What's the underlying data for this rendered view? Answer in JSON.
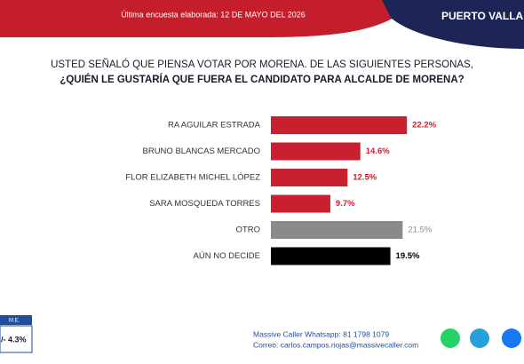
{
  "header": {
    "survey_date": "Última encuesta elaborada: 12 DE MAYO DEL 2026",
    "city": "PUERTO VALLA"
  },
  "chart_data": {
    "type": "hbar",
    "title": [
      "USTED SEÑALÓ QUE PIENSA VOTAR POR MORENA. DE LAS SIGUIENTES PERSONAS,",
      "¿QUIÉN LE GUSTARÍA QUE FUERA EL CANDIDATO PARA ALCALDE DE MORENA?"
    ],
    "categories": [
      "RA AGUILAR ESTRADA",
      "BRUNO BLANCAS MERCADO",
      "FLOR ELIZABETH MICHEL LÓPEZ",
      "SARA MOSQUEDA TORRES",
      "OTRO",
      "AÚN NO DECIDE"
    ],
    "values": [
      22.2,
      14.6,
      12.5,
      9.7,
      21.5,
      19.5
    ],
    "value_labels": [
      "22.2%",
      "14.6%",
      "12.5%",
      "9.7%",
      "21.5%",
      "19.5%"
    ],
    "colors": [
      "#c8202f",
      "#c8202f",
      "#c8202f",
      "#c8202f",
      "#8a8a8a",
      "#000000"
    ]
  },
  "margin_of_error": {
    "label": "M.E.",
    "value": "/- 4.3%"
  },
  "footer": {
    "whatsapp": "Massive Caller Whatsapp: 81 1798 1079",
    "email": "Correo: carlos.campos.riojas@massivecaller.com"
  }
}
